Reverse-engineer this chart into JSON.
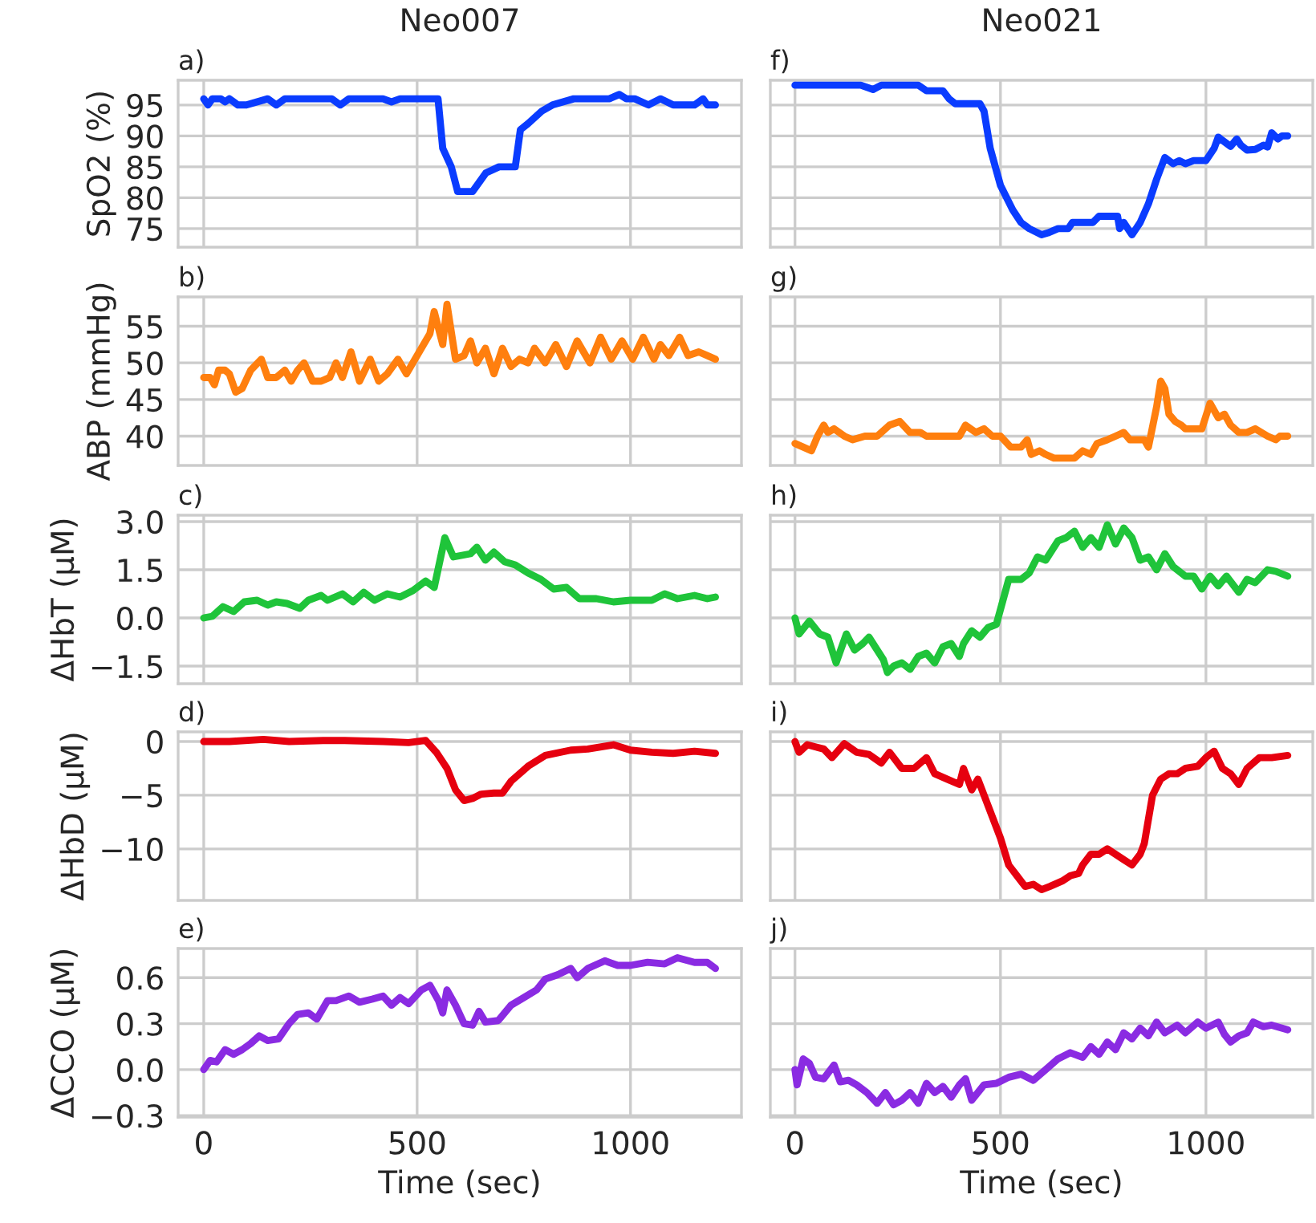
{
  "chart_data": [
    {
      "type": "line",
      "title": "Neo007",
      "annotations": [
        "a)"
      ],
      "ylabel": "SpO2 (%)",
      "xlim": [
        -60,
        1260
      ],
      "xticks": [
        0,
        500,
        1000
      ],
      "ylim": [
        72,
        99
      ],
      "yticks": [
        75,
        80,
        85,
        90,
        95
      ],
      "grid": true,
      "tick_labels": "y",
      "series": [
        {
          "color": "#0a3cff",
          "x": [
            0,
            10,
            20,
            40,
            50,
            60,
            70,
            80,
            100,
            150,
            170,
            190,
            210,
            300,
            320,
            340,
            360,
            420,
            440,
            460,
            480,
            500,
            549,
            560,
            580,
            595,
            630,
            661,
            692,
            730,
            742,
            760,
            792,
            817,
            867,
            950,
            974,
            990,
            1010,
            1042,
            1070,
            1100,
            1150,
            1170,
            1180,
            1199
          ],
          "values": [
            96,
            95,
            96,
            96,
            95.5,
            96,
            95.5,
            95,
            95,
            96,
            95,
            96,
            96,
            96,
            95,
            96,
            96,
            96,
            95.5,
            96,
            96,
            96,
            96,
            88,
            85,
            81,
            81,
            84,
            85,
            85,
            91,
            92,
            94,
            95,
            96,
            96,
            96.7,
            96,
            96,
            95,
            96,
            95,
            95,
            96,
            95,
            95
          ]
        }
      ]
    },
    {
      "type": "line",
      "title": "Neo021",
      "annotations": [
        "f)"
      ],
      "xlim": [
        -60,
        1260
      ],
      "xticks": [
        0,
        500,
        1000
      ],
      "ylim": [
        72,
        99
      ],
      "yticks": [
        {
          "value": 75,
          "label": null
        },
        {
          "value": 80,
          "label": null
        },
        {
          "value": 85,
          "label": null
        },
        {
          "value": 90,
          "label": null
        },
        {
          "value": 95,
          "label": null
        }
      ],
      "grid": true,
      "tick_labels": false,
      "series": [
        {
          "color": "#0a3cff",
          "x": [
            0,
            160,
            190,
            210,
            300,
            320,
            360,
            375,
            390,
            450,
            460,
            475,
            500,
            530,
            550,
            570,
            600,
            615,
            640,
            665,
            675,
            725,
            740,
            785,
            790,
            800,
            820,
            840,
            860,
            880,
            900,
            920,
            935,
            950,
            970,
            1000,
            1020,
            1030,
            1050,
            1060,
            1075,
            1085,
            1100,
            1120,
            1140,
            1150,
            1160,
            1175,
            1185,
            1199
          ],
          "values": [
            98.2,
            98.2,
            97.5,
            98.2,
            98.2,
            97.3,
            97.3,
            96,
            95.2,
            95.2,
            94,
            88,
            82,
            78,
            76,
            75,
            74,
            74.3,
            75,
            75,
            76,
            76,
            77,
            77,
            75,
            76,
            74,
            76,
            79,
            83,
            86.5,
            85.5,
            86,
            85.5,
            86,
            86,
            88,
            89.8,
            88.8,
            88.3,
            89.5,
            88.5,
            87.7,
            87.8,
            88.5,
            88.2,
            90.5,
            89.5,
            90,
            90
          ]
        }
      ]
    },
    {
      "type": "line",
      "annotations": [
        "b)"
      ],
      "ylabel": "ABP (mmHg)",
      "xlim": [
        -60,
        1260
      ],
      "xticks": [
        0,
        500,
        1000
      ],
      "ylim": [
        36,
        59
      ],
      "yticks": [
        40,
        45,
        50,
        55
      ],
      "grid": true,
      "tick_labels": "y",
      "series": [
        {
          "color": "#ff7f0e",
          "x": [
            0,
            15,
            25,
            35,
            50,
            60,
            75,
            90,
            110,
            135,
            150,
            170,
            190,
            205,
            220,
            235,
            255,
            275,
            295,
            310,
            325,
            345,
            365,
            390,
            410,
            430,
            455,
            475,
            505,
            530,
            540,
            560,
            570,
            590,
            610,
            625,
            640,
            660,
            680,
            700,
            720,
            740,
            760,
            775,
            800,
            825,
            850,
            875,
            905,
            930,
            955,
            980,
            1005,
            1030,
            1055,
            1070,
            1090,
            1115,
            1135,
            1160,
            1180,
            1199
          ],
          "values": [
            48,
            48,
            47,
            49,
            49,
            48.5,
            46,
            46.5,
            49,
            50.5,
            48,
            48,
            49,
            47.5,
            49,
            50,
            47.5,
            47.5,
            48,
            50,
            48,
            51.5,
            47.5,
            50.5,
            47.5,
            48.5,
            50.5,
            48.5,
            51.5,
            54,
            57,
            52.5,
            58,
            50.5,
            51,
            53,
            50,
            52,
            48.5,
            52,
            49.5,
            50.5,
            50,
            52,
            50,
            52.5,
            49.5,
            53,
            50,
            53.5,
            50.5,
            53,
            50.5,
            53.5,
            50.5,
            52.5,
            51,
            53.5,
            51,
            51.5,
            51,
            50.5
          ]
        }
      ]
    },
    {
      "type": "line",
      "annotations": [
        "g)"
      ],
      "xlim": [
        -60,
        1260
      ],
      "xticks": [
        0,
        500,
        1000
      ],
      "ylim": [
        36,
        59
      ],
      "yticks": [
        {
          "value": 40,
          "label": null
        },
        {
          "value": 45,
          "label": null
        },
        {
          "value": 50,
          "label": null
        },
        {
          "value": 55,
          "label": null
        }
      ],
      "grid": true,
      "tick_labels": false,
      "series": [
        {
          "color": "#ff7f0e",
          "x": [
            0,
            20,
            40,
            55,
            70,
            80,
            95,
            120,
            140,
            170,
            200,
            230,
            255,
            280,
            305,
            320,
            400,
            415,
            440,
            460,
            480,
            500,
            525,
            550,
            565,
            575,
            595,
            610,
            630,
            680,
            700,
            720,
            735,
            760,
            780,
            800,
            815,
            850,
            860,
            880,
            890,
            900,
            910,
            925,
            940,
            950,
            990,
            1010,
            1030,
            1045,
            1060,
            1080,
            1100,
            1120,
            1150,
            1170,
            1180,
            1199
          ],
          "values": [
            39,
            38.5,
            38,
            40,
            41.5,
            40.5,
            41,
            40,
            39.5,
            40,
            40,
            41.5,
            42,
            40.5,
            40.5,
            40,
            40,
            41.5,
            40.5,
            41,
            40,
            40,
            38.5,
            38.5,
            39.5,
            37.5,
            38,
            37.5,
            37,
            37,
            38,
            37.5,
            39,
            39.5,
            40,
            40.5,
            39.5,
            39.5,
            38.5,
            44,
            47.5,
            46.5,
            43,
            42,
            41.5,
            41,
            41,
            44.5,
            42.5,
            43,
            41.5,
            40.5,
            40.5,
            41,
            40,
            39.5,
            40,
            40
          ]
        }
      ]
    },
    {
      "type": "line",
      "annotations": [
        "c)"
      ],
      "ylabel": "ΔHbT (μM)",
      "xlim": [
        -60,
        1260
      ],
      "xticks": [
        0,
        500,
        1000
      ],
      "ylim": [
        -2.05,
        3.2
      ],
      "yticks": [
        {
          "value": -1.5,
          "label": "−1.5"
        },
        {
          "value": 0,
          "label": "0.0"
        },
        {
          "value": 1.5,
          "label": "1.5"
        },
        {
          "value": 3,
          "label": "3.0"
        }
      ],
      "grid": true,
      "tick_labels": "y",
      "series": [
        {
          "color": "#1fc43a",
          "x": [
            0,
            20,
            45,
            70,
            95,
            125,
            150,
            170,
            195,
            225,
            245,
            275,
            290,
            325,
            350,
            375,
            400,
            430,
            460,
            490,
            520,
            540,
            565,
            585,
            625,
            640,
            660,
            680,
            705,
            730,
            760,
            790,
            820,
            850,
            880,
            920,
            960,
            1000,
            1050,
            1080,
            1110,
            1150,
            1180,
            1199
          ],
          "values": [
            0,
            0.05,
            0.35,
            0.2,
            0.5,
            0.55,
            0.4,
            0.5,
            0.45,
            0.3,
            0.55,
            0.7,
            0.55,
            0.75,
            0.5,
            0.8,
            0.55,
            0.75,
            0.65,
            0.85,
            1.15,
            0.95,
            2.5,
            1.9,
            2.0,
            2.2,
            1.8,
            2.05,
            1.75,
            1.65,
            1.4,
            1.2,
            0.9,
            0.95,
            0.6,
            0.6,
            0.5,
            0.55,
            0.55,
            0.75,
            0.6,
            0.7,
            0.6,
            0.65
          ]
        }
      ]
    },
    {
      "type": "line",
      "annotations": [
        "h)"
      ],
      "xlim": [
        -60,
        1260
      ],
      "xticks": [
        0,
        500,
        1000
      ],
      "ylim": [
        -2.05,
        3.2
      ],
      "yticks": [
        {
          "value": -1.5,
          "label": null
        },
        {
          "value": 0,
          "label": null
        },
        {
          "value": 1.5,
          "label": null
        },
        {
          "value": 3,
          "label": null
        }
      ],
      "grid": true,
      "tick_labels": false,
      "series": [
        {
          "color": "#1fc43a",
          "x": [
            0,
            10,
            35,
            60,
            80,
            100,
            125,
            145,
            165,
            180,
            200,
            215,
            225,
            240,
            260,
            280,
            300,
            320,
            340,
            360,
            380,
            400,
            410,
            430,
            450,
            470,
            490,
            520,
            550,
            570,
            590,
            610,
            640,
            660,
            680,
            700,
            720,
            740,
            760,
            780,
            800,
            820,
            840,
            860,
            880,
            900,
            920,
            950,
            970,
            990,
            1010,
            1030,
            1050,
            1080,
            1100,
            1120,
            1150,
            1170,
            1199
          ],
          "values": [
            0,
            -0.5,
            -0.1,
            -0.5,
            -0.6,
            -1.4,
            -0.5,
            -1.0,
            -0.8,
            -0.6,
            -1.0,
            -1.3,
            -1.7,
            -1.5,
            -1.4,
            -1.6,
            -1.2,
            -1.1,
            -1.4,
            -0.9,
            -0.8,
            -1.2,
            -0.8,
            -0.4,
            -0.6,
            -0.3,
            -0.2,
            1.2,
            1.2,
            1.4,
            1.9,
            1.8,
            2.4,
            2.5,
            2.7,
            2.2,
            2.5,
            2.2,
            2.9,
            2.3,
            2.8,
            2.5,
            1.8,
            1.9,
            1.5,
            2.0,
            1.6,
            1.3,
            1.3,
            0.9,
            1.3,
            1.0,
            1.3,
            0.8,
            1.2,
            1.1,
            1.5,
            1.45,
            1.3
          ]
        }
      ]
    },
    {
      "type": "line",
      "annotations": [
        "d)"
      ],
      "ylabel": "ΔHbD (μM)",
      "xlim": [
        -60,
        1260
      ],
      "xticks": [
        0,
        500,
        1000
      ],
      "ylim": [
        -14.8,
        0.9
      ],
      "yticks": [
        {
          "value": -10,
          "label": "−10"
        },
        {
          "value": -5,
          "label": "−5"
        },
        0
      ],
      "grid": true,
      "tick_labels": "y",
      "series": [
        {
          "color": "#e6000f",
          "x": [
            0,
            60,
            140,
            200,
            280,
            330,
            420,
            480,
            520,
            545,
            570,
            590,
            610,
            630,
            650,
            680,
            700,
            720,
            760,
            800,
            860,
            900,
            960,
            1000,
            1050,
            1100,
            1150,
            1199
          ],
          "values": [
            0,
            0,
            0.2,
            0,
            0.1,
            0.1,
            0.0,
            -0.1,
            0.1,
            -1.0,
            -2.5,
            -4.5,
            -5.5,
            -5.3,
            -4.9,
            -4.8,
            -4.8,
            -3.7,
            -2.3,
            -1.3,
            -0.8,
            -0.7,
            -0.3,
            -0.8,
            -1.0,
            -1.1,
            -0.9,
            -1.1
          ]
        }
      ]
    },
    {
      "type": "line",
      "annotations": [
        "i)"
      ],
      "xlim": [
        -60,
        1260
      ],
      "xticks": [
        0,
        500,
        1000
      ],
      "ylim": [
        -14.8,
        0.9
      ],
      "yticks": [
        {
          "value": -10,
          "label": null
        },
        {
          "value": -5,
          "label": null
        },
        {
          "value": 0,
          "label": null
        }
      ],
      "grid": true,
      "tick_labels": false,
      "series": [
        {
          "color": "#e6000f",
          "x": [
            0,
            10,
            30,
            50,
            70,
            90,
            120,
            150,
            180,
            210,
            230,
            260,
            290,
            320,
            340,
            370,
            400,
            410,
            430,
            445,
            460,
            480,
            500,
            520,
            540,
            560,
            580,
            600,
            620,
            650,
            670,
            690,
            700,
            720,
            740,
            760,
            780,
            800,
            820,
            840,
            850,
            870,
            890,
            910,
            930,
            950,
            980,
            1000,
            1020,
            1040,
            1060,
            1080,
            1100,
            1130,
            1160,
            1199
          ],
          "values": [
            0,
            -1.0,
            -0.3,
            -0.5,
            -0.7,
            -1.5,
            -0.2,
            -1.0,
            -1.2,
            -2.0,
            -1.0,
            -2.5,
            -2.5,
            -1.5,
            -3.0,
            -3.5,
            -4.0,
            -2.5,
            -4.5,
            -3.5,
            -5.0,
            -7.0,
            -9.0,
            -11.5,
            -12.5,
            -13.5,
            -13.3,
            -13.8,
            -13.5,
            -13.0,
            -12.5,
            -12.3,
            -11.5,
            -10.5,
            -10.5,
            -10.0,
            -10.5,
            -11.0,
            -11.5,
            -10.5,
            -9.5,
            -5.0,
            -3.5,
            -3.0,
            -3.0,
            -2.5,
            -2.3,
            -1.5,
            -0.9,
            -2.5,
            -3.0,
            -4.0,
            -2.5,
            -1.5,
            -1.5,
            -1.3
          ]
        }
      ]
    },
    {
      "type": "line",
      "annotations": [
        "e)"
      ],
      "ylabel": "ΔCCO (μM)",
      "xlabel": "Time (sec)",
      "xlim": [
        -60,
        1260
      ],
      "xticks": [
        0,
        500,
        1000
      ],
      "ylim": [
        -0.31,
        0.79
      ],
      "yticks": [
        {
          "value": -0.3,
          "label": "−0.3"
        },
        {
          "value": 0,
          "label": "0.0"
        },
        {
          "value": 0.3,
          "label": "0.3"
        },
        {
          "value": 0.6,
          "label": "0.6"
        }
      ],
      "grid": true,
      "series": [
        {
          "color": "#8a2be2",
          "x": [
            0,
            15,
            30,
            50,
            70,
            90,
            110,
            130,
            150,
            175,
            200,
            220,
            245,
            265,
            290,
            310,
            340,
            365,
            395,
            420,
            440,
            460,
            480,
            510,
            530,
            550,
            560,
            570,
            590,
            610,
            630,
            645,
            660,
            690,
            720,
            750,
            780,
            800,
            830,
            860,
            875,
            900,
            940,
            970,
            1000,
            1040,
            1080,
            1110,
            1150,
            1180,
            1199
          ],
          "values": [
            0,
            0.06,
            0.05,
            0.13,
            0.1,
            0.13,
            0.17,
            0.22,
            0.19,
            0.2,
            0.3,
            0.36,
            0.37,
            0.33,
            0.45,
            0.45,
            0.48,
            0.44,
            0.46,
            0.48,
            0.42,
            0.47,
            0.43,
            0.52,
            0.55,
            0.45,
            0.37,
            0.52,
            0.42,
            0.3,
            0.29,
            0.38,
            0.31,
            0.32,
            0.42,
            0.47,
            0.52,
            0.59,
            0.62,
            0.66,
            0.6,
            0.66,
            0.71,
            0.68,
            0.68,
            0.7,
            0.69,
            0.73,
            0.7,
            0.7,
            0.66
          ]
        }
      ]
    },
    {
      "type": "line",
      "annotations": [
        "j)"
      ],
      "xlabel": "Time (sec)",
      "xlim": [
        -60,
        1260
      ],
      "xticks": [
        0,
        500,
        1000
      ],
      "ylim": [
        -0.31,
        0.79
      ],
      "yticks": [
        {
          "value": -0.3,
          "label": null
        },
        {
          "value": 0,
          "label": null
        },
        {
          "value": 0.3,
          "label": null
        },
        {
          "value": 0.6,
          "label": null
        }
      ],
      "grid": true,
      "tick_labels": "x",
      "series": [
        {
          "color": "#8a2be2",
          "x": [
            0,
            5,
            20,
            35,
            50,
            70,
            95,
            110,
            130,
            150,
            175,
            200,
            220,
            240,
            260,
            280,
            300,
            320,
            340,
            360,
            380,
            400,
            415,
            430,
            460,
            490,
            520,
            550,
            580,
            610,
            640,
            670,
            700,
            720,
            740,
            760,
            780,
            800,
            820,
            840,
            860,
            880,
            900,
            930,
            950,
            980,
            1000,
            1030,
            1045,
            1060,
            1080,
            1100,
            1115,
            1140,
            1160,
            1199
          ],
          "values": [
            0,
            -0.1,
            0.07,
            0.04,
            -0.05,
            -0.06,
            0.03,
            -0.08,
            -0.07,
            -0.1,
            -0.15,
            -0.22,
            -0.15,
            -0.23,
            -0.2,
            -0.15,
            -0.22,
            -0.09,
            -0.15,
            -0.11,
            -0.18,
            -0.1,
            -0.06,
            -0.2,
            -0.1,
            -0.09,
            -0.05,
            -0.03,
            -0.07,
            0.0,
            0.07,
            0.11,
            0.08,
            0.15,
            0.1,
            0.18,
            0.13,
            0.24,
            0.2,
            0.27,
            0.22,
            0.31,
            0.24,
            0.29,
            0.24,
            0.31,
            0.27,
            0.31,
            0.23,
            0.18,
            0.22,
            0.24,
            0.31,
            0.28,
            0.29,
            0.26
          ]
        }
      ]
    }
  ]
}
